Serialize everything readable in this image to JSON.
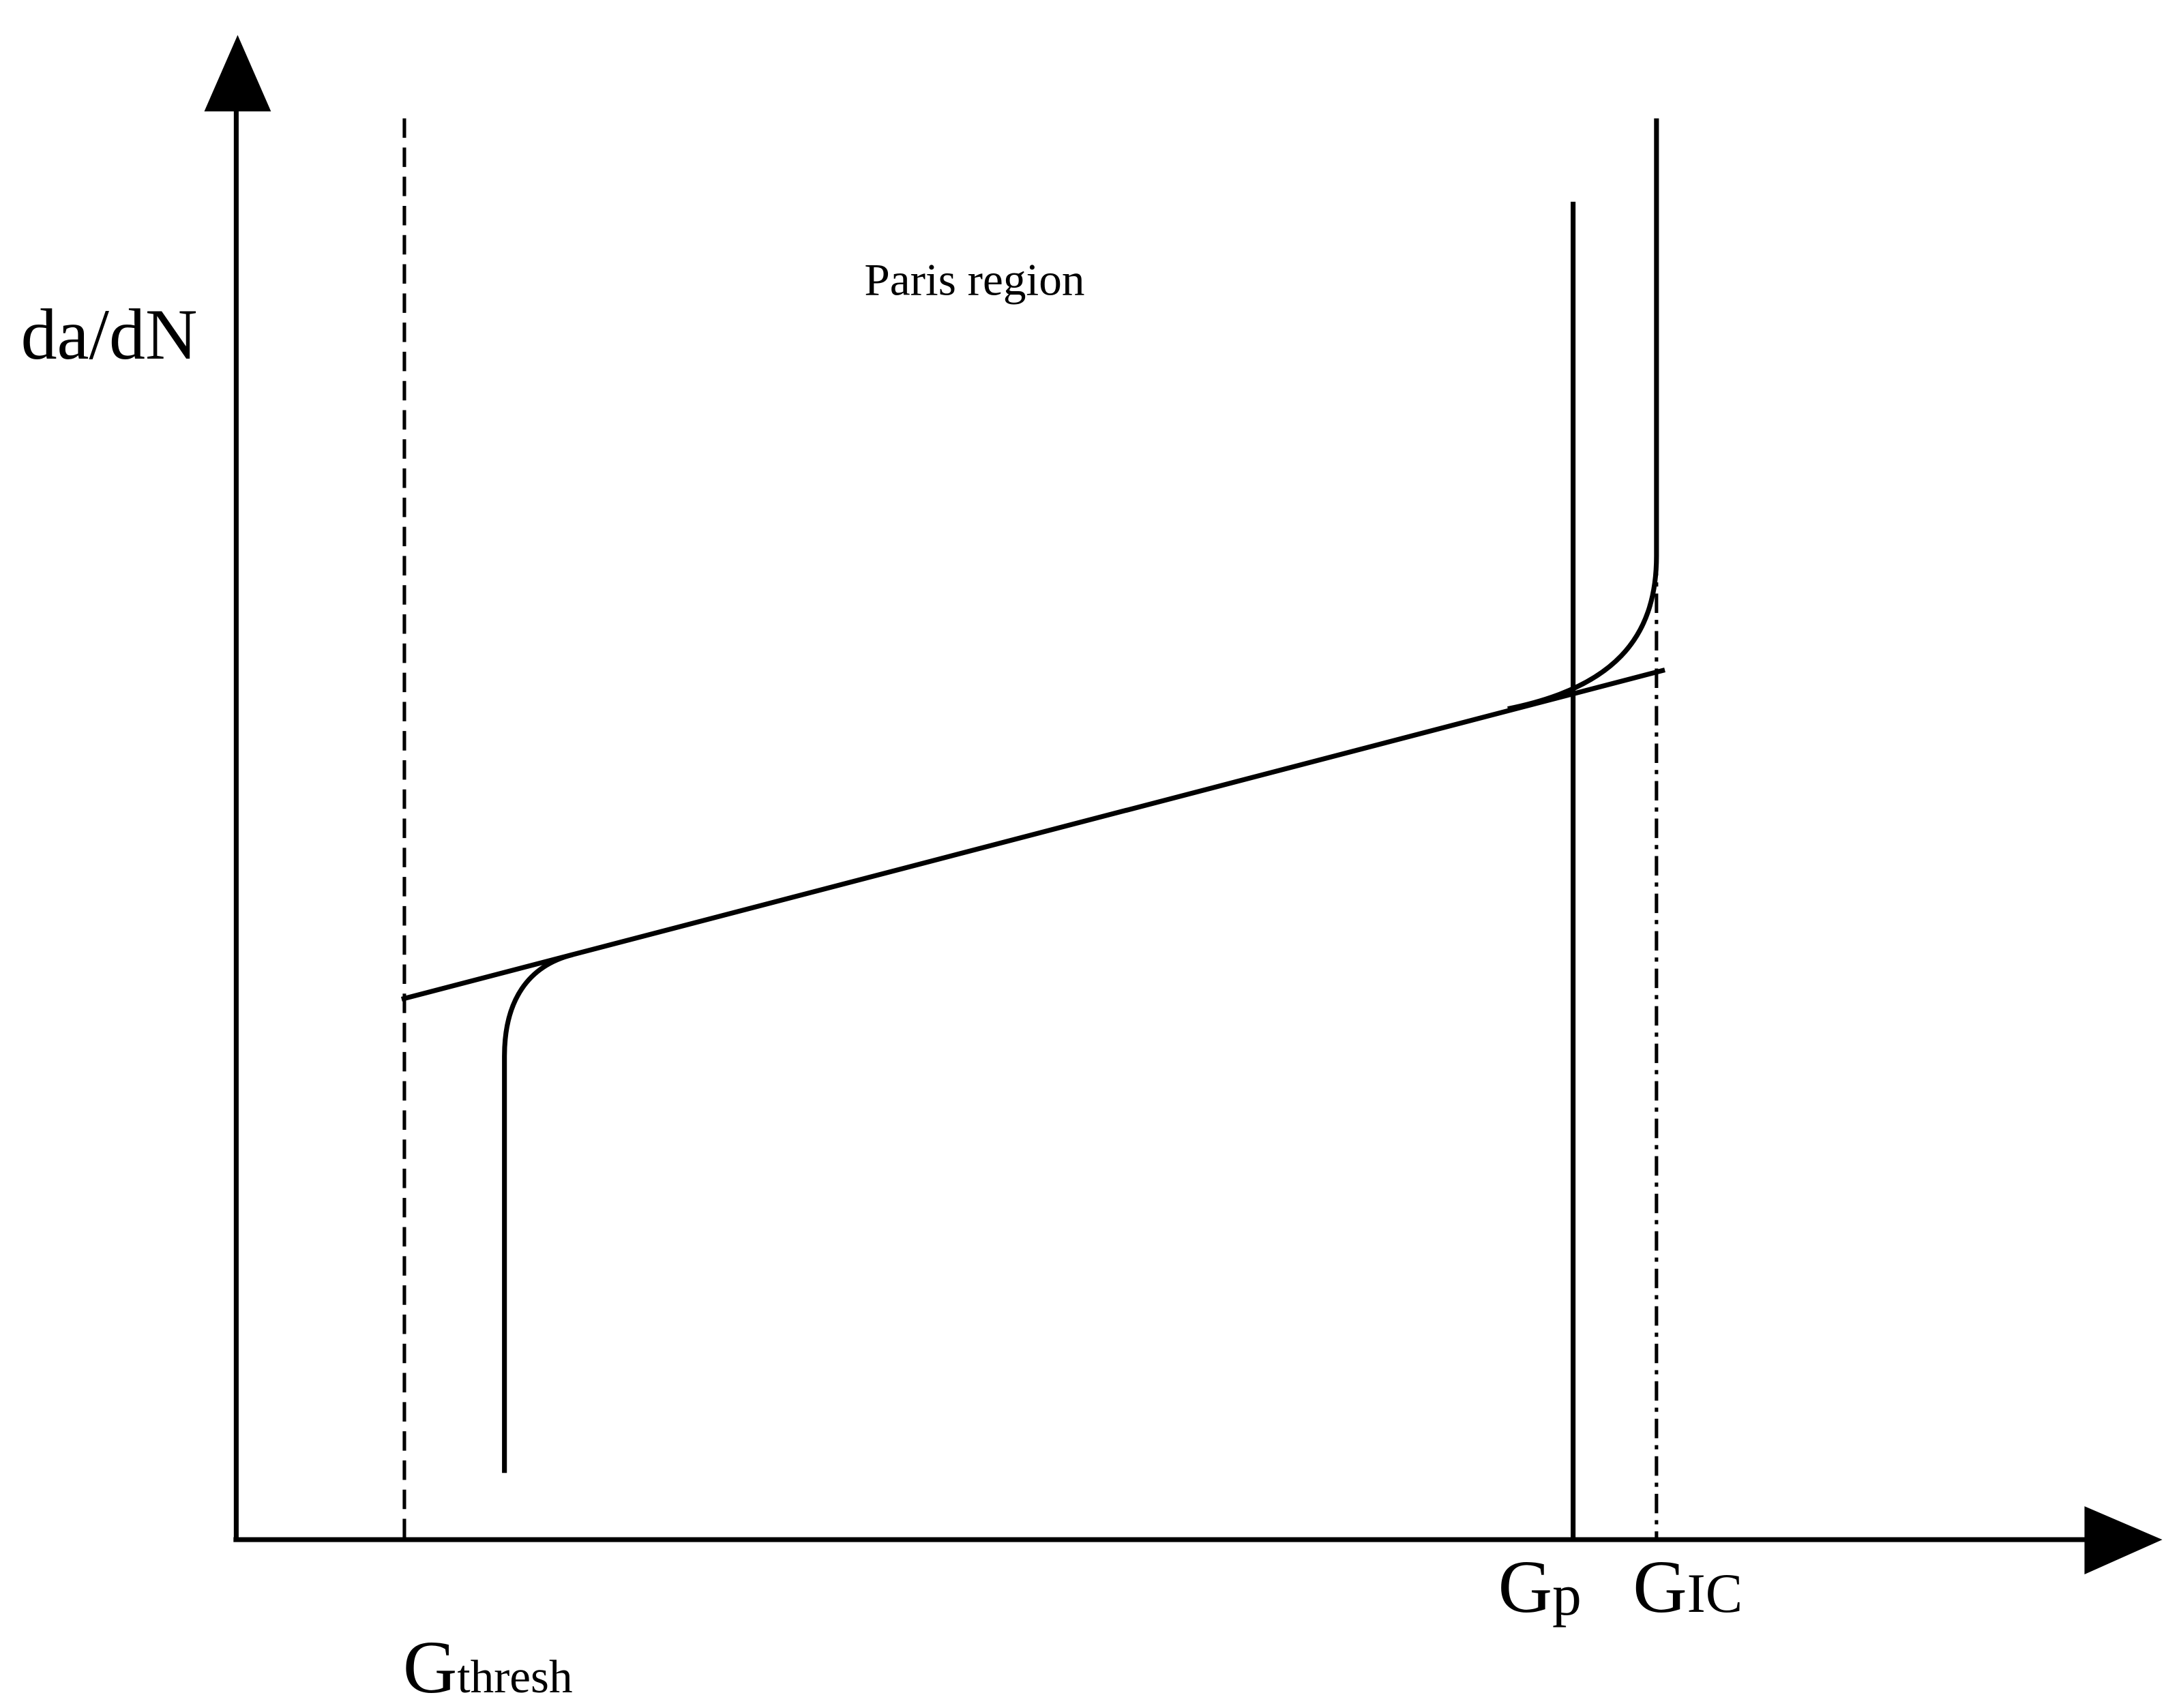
{
  "y_axis_label": "da/dN",
  "region_label": "Paris region",
  "markers": [
    {
      "symbol": "G",
      "subscript": "thresh"
    },
    {
      "symbol": "G",
      "subscript": "p"
    },
    {
      "symbol": "G",
      "subscript": "IC"
    }
  ]
}
